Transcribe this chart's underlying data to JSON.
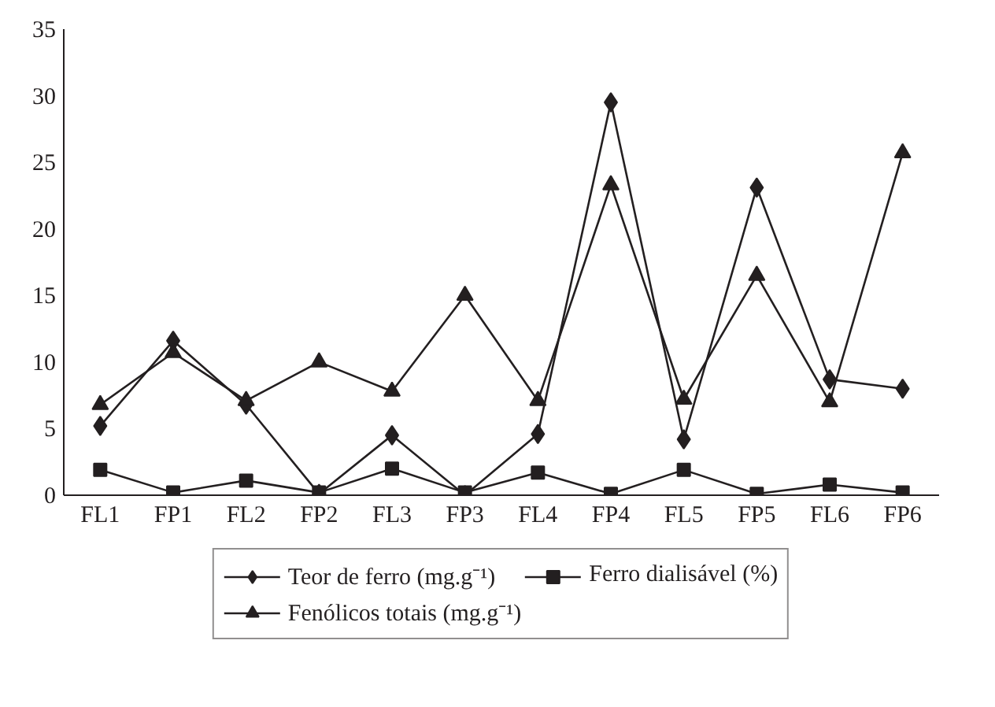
{
  "chart_data": {
    "type": "line",
    "categories": [
      "FL1",
      "FP1",
      "FL2",
      "FP2",
      "FL3",
      "FP3",
      "FL4",
      "FP4",
      "FL5",
      "FP5",
      "FL6",
      "FP6"
    ],
    "series": [
      {
        "name": "Teor de ferro (mg.g⁻¹)",
        "color": "#231f20",
        "marker": "diamond",
        "values": [
          5.2,
          11.6,
          6.8,
          0.1,
          4.5,
          0,
          4.6,
          29.5,
          4.2,
          23.1,
          8.7,
          8.0
        ]
      },
      {
        "name": "Ferro dialisável (%)",
        "color": "#231f20",
        "marker": "square",
        "values": [
          1.9,
          0.2,
          1.1,
          0.2,
          2.0,
          0.2,
          1.7,
          0.1,
          1.9,
          0.1,
          0.8,
          0.2
        ]
      },
      {
        "name": "Fenólicos totais (mg.g⁻¹)",
        "color": "#231f20",
        "marker": "triangle",
        "values": [
          6.8,
          10.7,
          7.1,
          10.0,
          7.8,
          15.0,
          7.1,
          23.3,
          7.2,
          16.5,
          7.0,
          25.7
        ]
      }
    ],
    "ylim": [
      0,
      35
    ],
    "yticks": [
      0,
      5,
      10,
      15,
      20,
      25,
      30,
      35
    ],
    "grid": false,
    "legend": "bottom",
    "line_style": "solid"
  }
}
